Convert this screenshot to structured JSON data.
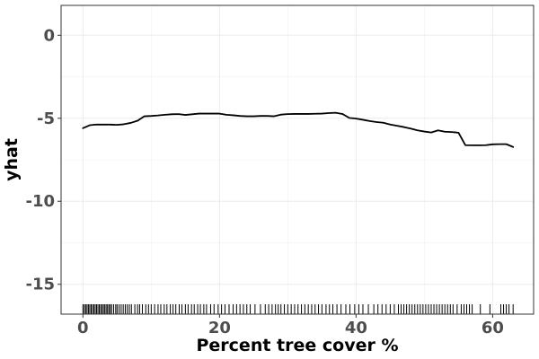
{
  "chart_data": {
    "type": "line",
    "title": "",
    "xlabel": "Percent tree cover %",
    "ylabel": "yhat",
    "xlim": [
      -3.2,
      66.0
    ],
    "ylim": [
      -16.8,
      1.8
    ],
    "x_ticks": [
      0,
      20,
      40,
      60
    ],
    "x_tick_labels": [
      "0",
      "20",
      "40",
      "60"
    ],
    "y_ticks": [
      0,
      -5,
      -10,
      -15
    ],
    "y_tick_labels": [
      "0",
      "-5",
      "-10",
      "-15"
    ],
    "grid": true,
    "legend": "none",
    "line_color": "#000000",
    "series": [
      {
        "x": [
          0,
          1,
          2,
          3,
          4,
          5,
          6,
          7,
          8,
          9,
          10,
          11,
          12,
          13,
          14,
          15,
          16,
          17,
          18,
          19,
          20,
          21,
          22,
          23,
          24,
          25,
          26,
          27,
          28,
          29,
          30,
          31,
          32,
          33,
          34,
          35,
          36,
          37,
          38,
          39,
          40,
          41,
          42,
          43,
          44,
          45,
          46,
          47,
          48,
          49,
          50,
          51,
          52,
          53,
          54,
          55,
          56,
          57,
          58,
          59,
          60,
          61,
          62,
          63
        ],
        "y": [
          -5.6,
          -5.42,
          -5.38,
          -5.38,
          -5.38,
          -5.4,
          -5.36,
          -5.28,
          -5.15,
          -4.88,
          -4.86,
          -4.83,
          -4.79,
          -4.76,
          -4.75,
          -4.8,
          -4.76,
          -4.72,
          -4.72,
          -4.72,
          -4.72,
          -4.79,
          -4.82,
          -4.86,
          -4.88,
          -4.88,
          -4.86,
          -4.86,
          -4.88,
          -4.78,
          -4.75,
          -4.74,
          -4.74,
          -4.74,
          -4.73,
          -4.72,
          -4.69,
          -4.67,
          -4.74,
          -4.98,
          -5.02,
          -5.09,
          -5.17,
          -5.23,
          -5.27,
          -5.38,
          -5.45,
          -5.53,
          -5.62,
          -5.73,
          -5.8,
          -5.86,
          -5.73,
          -5.81,
          -5.83,
          -5.87,
          -6.62,
          -6.63,
          -6.63,
          -6.62,
          -6.57,
          -6.56,
          -6.56,
          -6.73
        ]
      }
    ],
    "rug_x": [
      0.0,
      0.2,
      0.4,
      0.6,
      0.8,
      1.0,
      1.2,
      1.4,
      1.6,
      1.8,
      2.0,
      2.2,
      2.4,
      2.6,
      2.8,
      3.0,
      3.2,
      3.4,
      3.6,
      3.8,
      4.0,
      4.2,
      4.5,
      4.8,
      5.0,
      5.3,
      5.6,
      5.9,
      6.2,
      6.5,
      6.8,
      7.1,
      7.6,
      8.0,
      8.3,
      8.7,
      9.2,
      9.6,
      10.0,
      10.5,
      11.0,
      11.4,
      11.9,
      12.3,
      12.8,
      13.2,
      13.6,
      14.1,
      14.5,
      15.0,
      15.4,
      15.9,
      16.3,
      16.8,
      17.2,
      17.7,
      18.1,
      18.7,
      19.2,
      19.8,
      20.3,
      20.8,
      21.4,
      22.0,
      22.5,
      23.0,
      23.5,
      24.0,
      24.5,
      25.2,
      26.0,
      26.7,
      27.2,
      27.7,
      28.2,
      28.6,
      29.0,
      29.5,
      30.0,
      30.5,
      31.0,
      31.5,
      32.0,
      32.5,
      33.0,
      33.5,
      34.0,
      34.5,
      35.0,
      35.6,
      36.1,
      36.6,
      37.2,
      37.8,
      38.5,
      39.1,
      39.8,
      40.4,
      41.0,
      41.8,
      42.6,
      43.2,
      43.8,
      44.4,
      45.0,
      45.6,
      46.2,
      46.6,
      47.0,
      47.4,
      47.8,
      48.2,
      48.6,
      49.0,
      49.4,
      49.8,
      50.2,
      50.6,
      51.0,
      51.4,
      51.8,
      52.2,
      52.6,
      53.0,
      53.4,
      53.8,
      54.2,
      54.8,
      55.4,
      55.8,
      56.2,
      56.6,
      57.0,
      58.2,
      59.6,
      61.2,
      61.6,
      62.0,
      62.4,
      63.0
    ]
  }
}
